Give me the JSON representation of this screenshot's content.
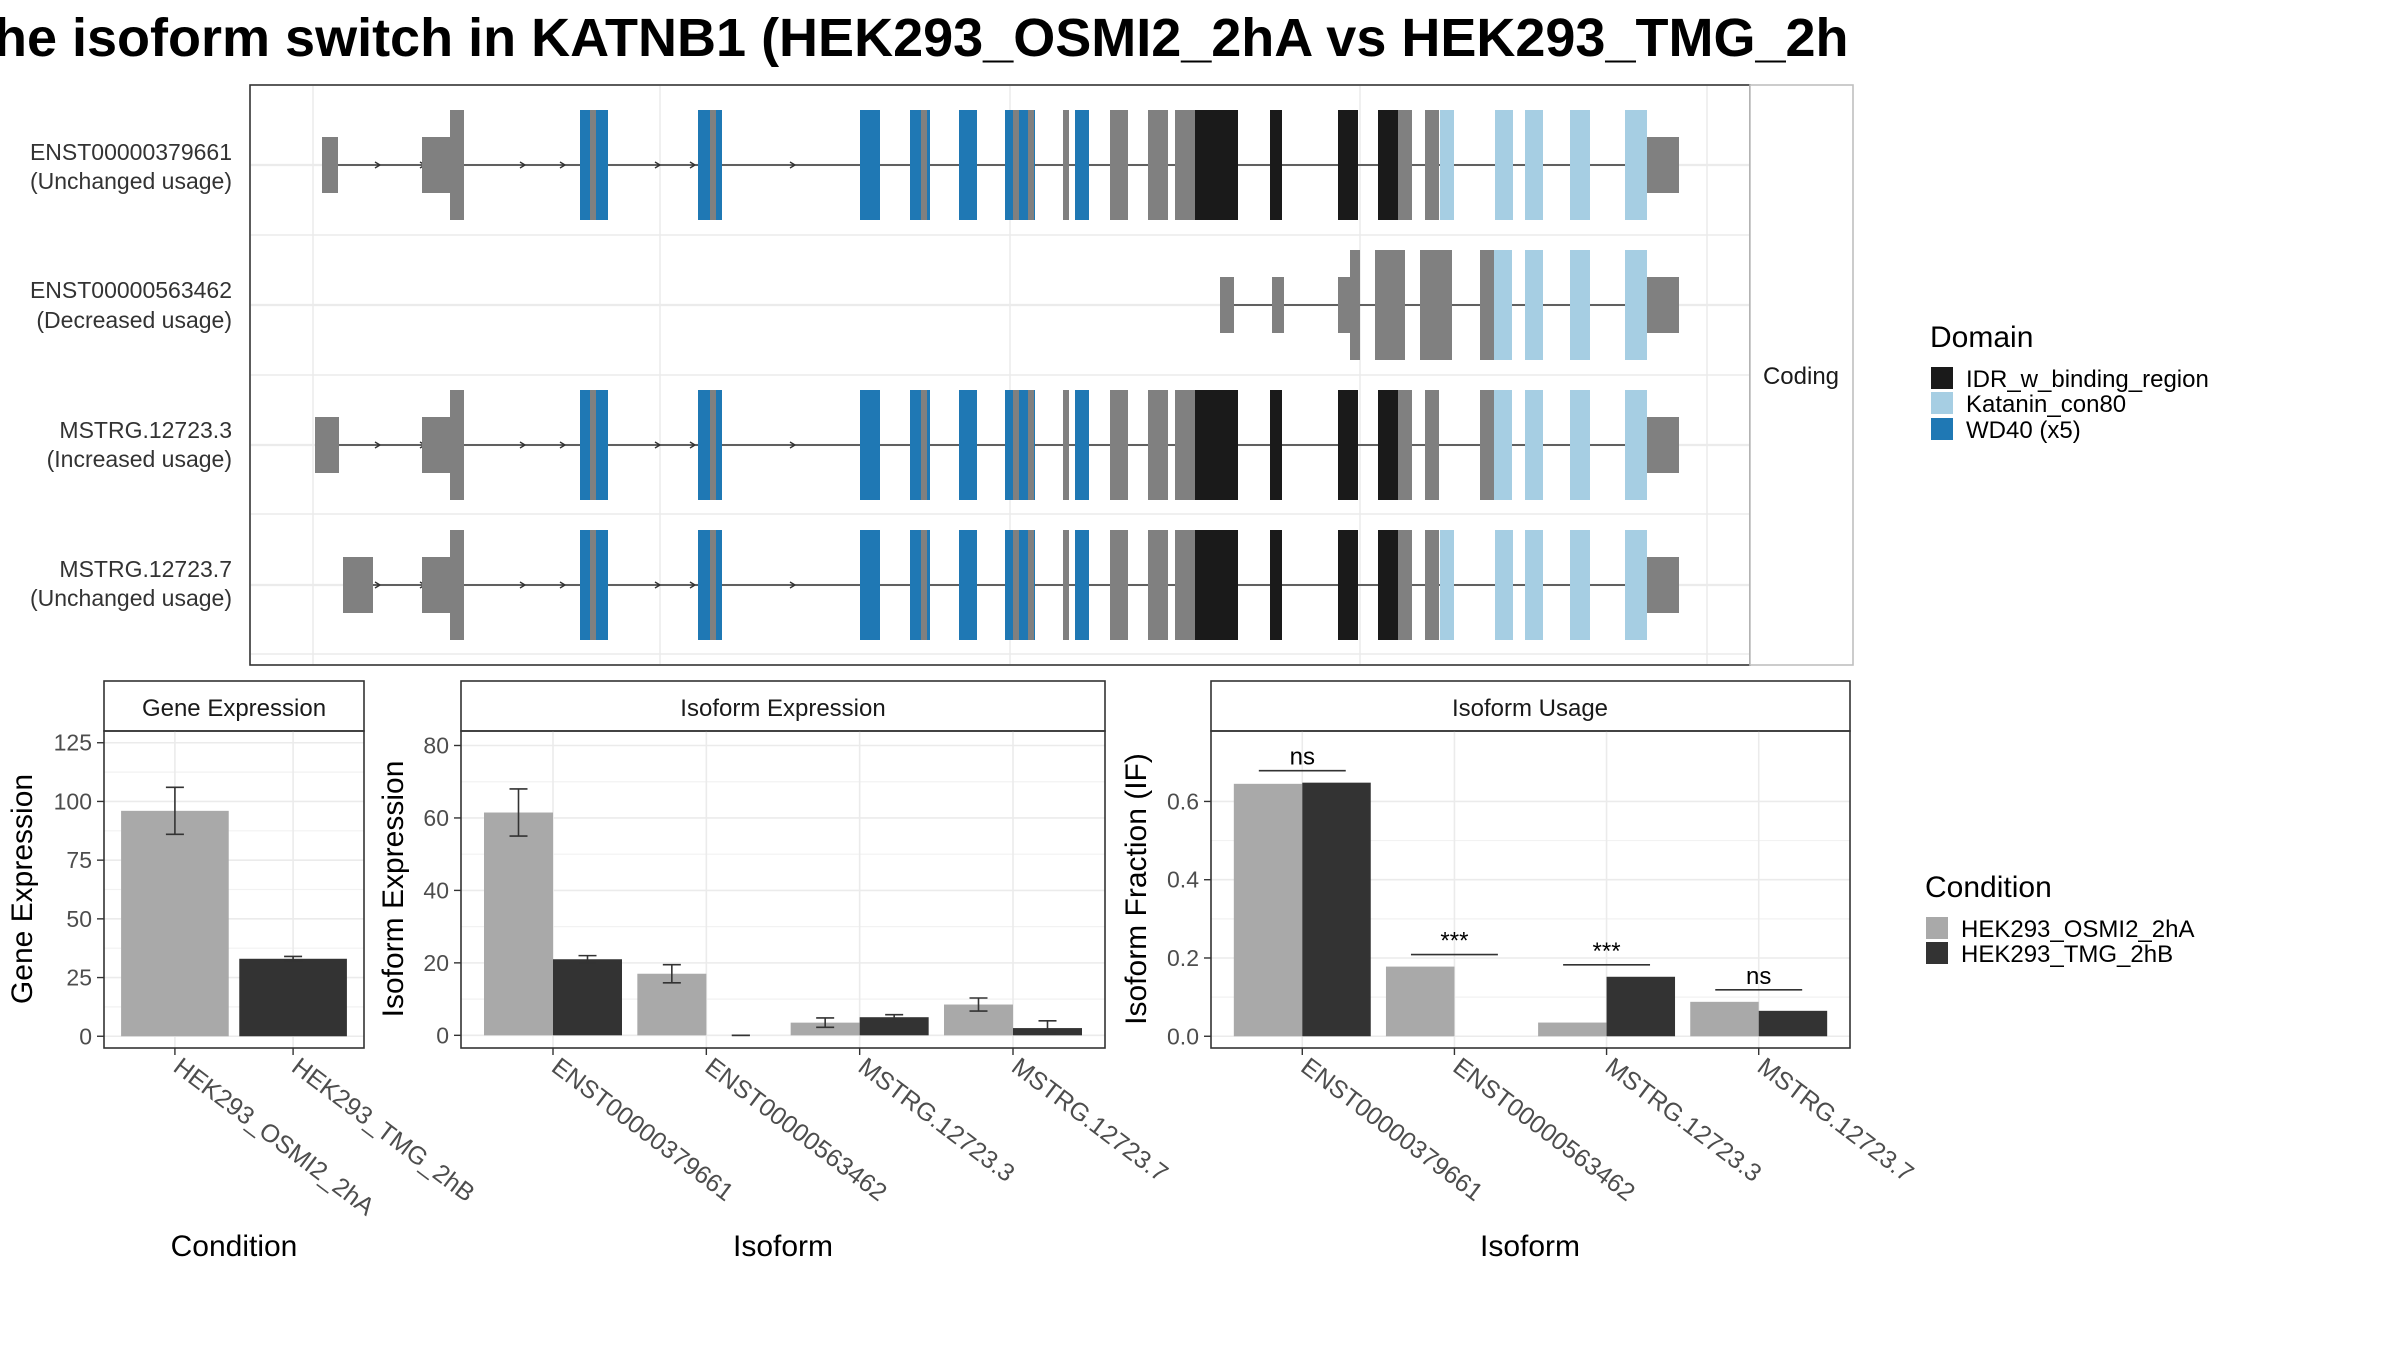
{
  "title": "he isoform switch in KATNB1 (HEK293_OSMI2_2hA vs HEK293_TMG_2h",
  "colors": {
    "IDR": "#1a1a1a",
    "Katanin": "#a6cee3",
    "WD40": "#1f78b4",
    "utr": "#808080",
    "condA": "#a9a9a9",
    "condB": "#333333"
  },
  "transcripts": {
    "strip_label": "Coding",
    "rows": [
      {
        "id": "ENST00000379661",
        "usage": "(Unchanged usage)"
      },
      {
        "id": "ENST00000563462",
        "usage": "(Decreased usage)"
      },
      {
        "id": "MSTRG.12723.3",
        "usage": "(Increased usage)"
      },
      {
        "id": "MSTRG.12723.7",
        "usage": "(Unchanged usage)"
      }
    ]
  },
  "legend_domain": {
    "title": "Domain",
    "items": [
      {
        "label": "IDR_w_binding_region",
        "color": "#1a1a1a"
      },
      {
        "label": "Katanin_con80",
        "color": "#a6cee3"
      },
      {
        "label": "WD40 (x5)",
        "color": "#1f78b4"
      }
    ]
  },
  "legend_condition": {
    "title": "Condition",
    "items": [
      {
        "label": "HEK293_OSMI2_2hA",
        "color": "#a9a9a9"
      },
      {
        "label": "HEK293_TMG_2hB",
        "color": "#333333"
      }
    ]
  },
  "chart_data": [
    {
      "type": "bar",
      "title": "Gene Expression",
      "xlabel": "Condition",
      "ylabel": "Gene Expression",
      "categories": [
        "HEK293_OSMI2_2hA",
        "HEK293_TMG_2hB"
      ],
      "values": [
        96,
        33
      ],
      "errors": [
        [
          86,
          106
        ],
        [
          32,
          34
        ]
      ],
      "colors": [
        "#a9a9a9",
        "#333333"
      ],
      "ylim": [
        -5,
        130
      ],
      "yticks": [
        0,
        25,
        50,
        75,
        100,
        125
      ]
    },
    {
      "type": "bar",
      "title": "Isoform Expression",
      "xlabel": "Isoform",
      "ylabel": "Isoform Expression",
      "categories": [
        "ENST00000379661",
        "ENST00000563462",
        "MSTRG.12723.3",
        "MSTRG.12723.7"
      ],
      "series": [
        {
          "name": "HEK293_OSMI2_2hA",
          "values": [
            61.5,
            17,
            3.5,
            8.5
          ],
          "errors": [
            [
              55,
              68
            ],
            [
              14.5,
              19.5
            ],
            [
              2.2,
              4.8
            ],
            [
              6.7,
              10.3
            ]
          ]
        },
        {
          "name": "HEK293_TMG_2hB",
          "values": [
            21,
            0,
            5,
            2
          ],
          "errors": [
            [
              20,
              22
            ],
            [
              0,
              0
            ],
            [
              4.3,
              5.7
            ],
            [
              0.5,
              4
            ]
          ]
        }
      ],
      "ylim": [
        -3.5,
        84
      ],
      "yticks": [
        0,
        20,
        40,
        60,
        80
      ]
    },
    {
      "type": "bar",
      "title": "Isoform Usage",
      "xlabel": "Isoform",
      "ylabel": "Isoform Fraction (IF)",
      "categories": [
        "ENST00000379661",
        "ENST00000563462",
        "MSTRG.12723.3",
        "MSTRG.12723.7"
      ],
      "series": [
        {
          "name": "HEK293_OSMI2_2hA",
          "values": [
            0.645,
            0.178,
            0.035,
            0.088
          ]
        },
        {
          "name": "HEK293_TMG_2hB",
          "values": [
            0.648,
            0.0,
            0.152,
            0.065
          ]
        }
      ],
      "significance": [
        "ns",
        "***",
        "***",
        "ns"
      ],
      "ylim": [
        -0.03,
        0.78
      ],
      "yticks": [
        "0.0",
        "0.2",
        "0.4",
        "0.6"
      ]
    }
  ]
}
